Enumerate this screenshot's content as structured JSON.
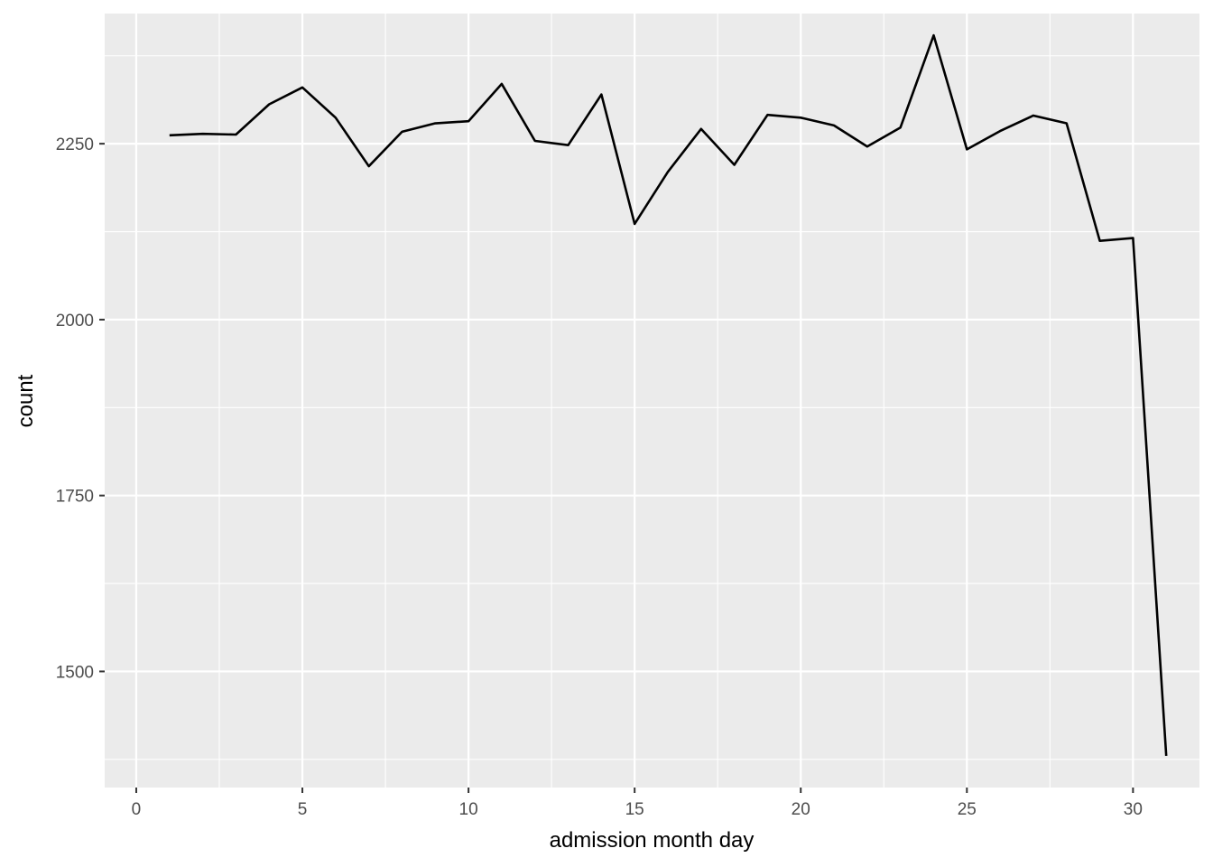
{
  "chart_data": {
    "type": "line",
    "title": "",
    "xlabel": "admission month day",
    "ylabel": "count",
    "xlim": [
      -0.95,
      32.0
    ],
    "ylim": [
      1335,
      2435
    ],
    "x_ticks": [
      0,
      5,
      10,
      15,
      20,
      25,
      30
    ],
    "y_ticks": [
      1500,
      1750,
      2000,
      2250
    ],
    "x_tick_labels": [
      "0",
      "5",
      "10",
      "15",
      "20",
      "25",
      "30"
    ],
    "y_tick_labels": [
      "1500",
      "1750",
      "2000",
      "2250"
    ],
    "grid": true,
    "colors": {
      "panel_background": "#ebebeb",
      "grid": "#ffffff",
      "line": "#000000"
    },
    "series": [
      {
        "x": [
          1,
          2,
          3,
          4,
          5,
          6,
          7,
          8,
          9,
          10,
          11,
          12,
          13,
          14,
          15,
          16,
          17,
          18,
          19,
          20,
          21,
          22,
          23,
          24,
          25,
          26,
          27,
          28,
          29,
          30,
          31
        ],
        "values": [
          2262,
          2264,
          2263,
          2306,
          2330,
          2287,
          2218,
          2267,
          2279,
          2282,
          2335,
          2254,
          2248,
          2320,
          2136,
          2210,
          2271,
          2220,
          2291,
          2287,
          2276,
          2246,
          2273,
          2404,
          2242,
          2268,
          2290,
          2279,
          2112,
          2116,
          1380
        ]
      }
    ]
  }
}
